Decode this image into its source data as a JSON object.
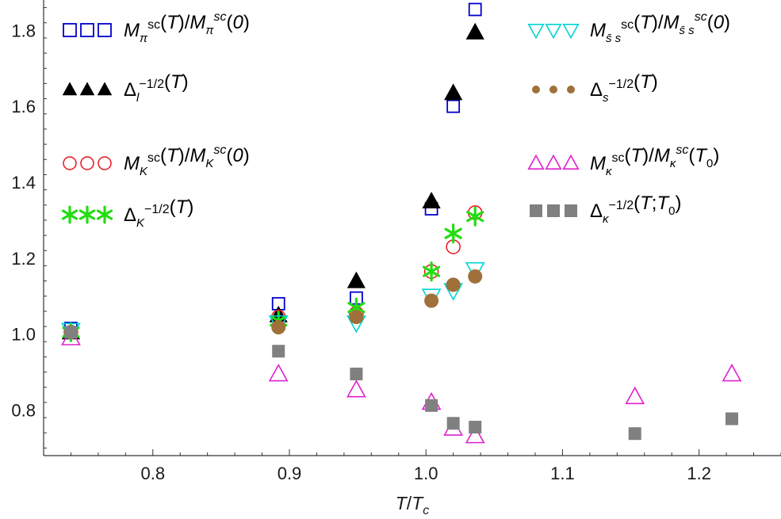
{
  "chart_data": {
    "type": "scatter",
    "xlabel": "T/T_c",
    "xlim": [
      0.72,
      1.26
    ],
    "ylim": [
      0.68,
      1.88
    ],
    "x_ticks": [
      0.8,
      0.9,
      1.0,
      1.1,
      1.2
    ],
    "y_ticks": [
      0.8,
      1.0,
      1.2,
      1.4,
      1.6,
      1.8
    ],
    "x_tick_labels": [
      "0.8",
      "0.9",
      "1.0",
      "1.1",
      "1.2"
    ],
    "y_tick_labels": [
      "0.8",
      "1.0",
      "1.2",
      "1.4",
      "1.6",
      "1.8"
    ],
    "grid": false,
    "series": [
      {
        "name": "M_π^sc(T)/M_π^sc(0)",
        "marker": "square-open",
        "color": "#0000cc",
        "points": [
          [
            0.74,
            1.015
          ],
          [
            0.892,
            1.08
          ],
          [
            0.949,
            1.095
          ],
          [
            1.004,
            1.33
          ],
          [
            1.02,
            1.6
          ],
          [
            1.036,
            1.855
          ]
        ]
      },
      {
        "name": "Δ_l^(-1/2)(T)",
        "marker": "triangle-filled",
        "color": "#000000",
        "points": [
          [
            0.74,
            1.005
          ],
          [
            0.892,
            1.05
          ],
          [
            0.949,
            1.14
          ],
          [
            1.004,
            1.35
          ],
          [
            1.02,
            1.635
          ],
          [
            1.036,
            1.795
          ]
        ]
      },
      {
        "name": "M_K^sc(T)/M_K^sc(0)",
        "marker": "circle-open",
        "color": "#e8141d",
        "points": [
          [
            0.74,
            1.005
          ],
          [
            0.892,
            1.045
          ],
          [
            0.949,
            1.055
          ],
          [
            1.004,
            1.165
          ],
          [
            1.02,
            1.23
          ],
          [
            1.036,
            1.32
          ]
        ]
      },
      {
        "name": "Δ_K^(-1/2)(T)",
        "marker": "star",
        "color": "#22dd11",
        "points": [
          [
            0.74,
            1.005
          ],
          [
            0.892,
            1.035
          ],
          [
            0.949,
            1.07
          ],
          [
            1.004,
            1.165
          ],
          [
            1.02,
            1.265
          ],
          [
            1.036,
            1.31
          ]
        ]
      },
      {
        "name": "M_s̄s^sc(T)/M_s̄s^sc(0)",
        "marker": "triangle-down-open",
        "color": "#00d4d4",
        "points": [
          [
            0.74,
            1.01
          ],
          [
            0.892,
            1.03
          ],
          [
            0.949,
            1.03
          ],
          [
            1.004,
            1.1
          ],
          [
            1.02,
            1.115
          ],
          [
            1.036,
            1.17
          ]
        ]
      },
      {
        "name": "Δ_s^(-1/2)(T)",
        "marker": "circle-filled",
        "color": "#a0703a",
        "points": [
          [
            0.74,
            1.005
          ],
          [
            0.892,
            1.018
          ],
          [
            0.949,
            1.045
          ],
          [
            1.004,
            1.088
          ],
          [
            1.02,
            1.13
          ],
          [
            1.036,
            1.152
          ]
        ]
      },
      {
        "name": "M_κ^sc(T)/M_κ^sc(T_0)",
        "marker": "triangle-open",
        "color": "#e020d0",
        "points": [
          [
            0.74,
            0.99
          ],
          [
            0.892,
            0.895
          ],
          [
            0.949,
            0.853
          ],
          [
            1.004,
            0.82
          ],
          [
            1.02,
            0.752
          ],
          [
            1.036,
            0.732
          ],
          [
            1.153,
            0.835
          ],
          [
            1.224,
            0.895
          ]
        ]
      },
      {
        "name": "Δ_κ^(-1/2)(T;T_0)",
        "marker": "square-filled",
        "color": "#808080",
        "points": [
          [
            0.74,
            1.005
          ],
          [
            0.892,
            0.955
          ],
          [
            0.949,
            0.895
          ],
          [
            1.004,
            0.812
          ],
          [
            1.02,
            0.765
          ],
          [
            1.036,
            0.755
          ],
          [
            1.153,
            0.738
          ],
          [
            1.224,
            0.777
          ]
        ]
      }
    ],
    "legend": [
      {
        "sym": "M",
        "sub": "π",
        "sup1": "sc",
        "arg1": "(T)/",
        "sym2": "M",
        "sub2": "π",
        "sup2": "sc",
        "arg2": "(0)"
      },
      {
        "sym": "Δ",
        "sub": "l",
        "sup1": "−1/2",
        "arg1": "(T)"
      },
      {
        "sym": "M",
        "sub": "K",
        "sup1": "sc",
        "arg1": "(T)/",
        "sym2": "M",
        "sub2": "K",
        "sup2": "sc",
        "arg2": "(0)"
      },
      {
        "sym": "Δ",
        "sub": "K",
        "sup1": "−1/2",
        "arg1": "(T)"
      },
      {
        "sym": "M",
        "sub": "s̄ s",
        "sup1": "sc",
        "arg1": "(T)/",
        "sym2": "M",
        "sub2": "s̄ s",
        "sup2": "sc",
        "arg2": "(0)"
      },
      {
        "sym": "Δ",
        "sub": "s",
        "sup1": "−1/2",
        "arg1": "(T)"
      },
      {
        "sym": "M",
        "sub": "κ",
        "sup1": "sc",
        "arg1": "(T)/",
        "sym2": "M",
        "sub2": "κ",
        "sup2": "sc",
        "arg2": "(T",
        "arg2sub": "0",
        "arg2end": ")"
      },
      {
        "sym": "Δ",
        "sub": "κ",
        "sup1": "−1/2",
        "arg1": "(T;T",
        "arg1sub": "0",
        "arg1end": ")"
      }
    ],
    "x_axis_label": {
      "main": "T",
      "slash": "/",
      "main2": "T",
      "sub": "c"
    }
  }
}
